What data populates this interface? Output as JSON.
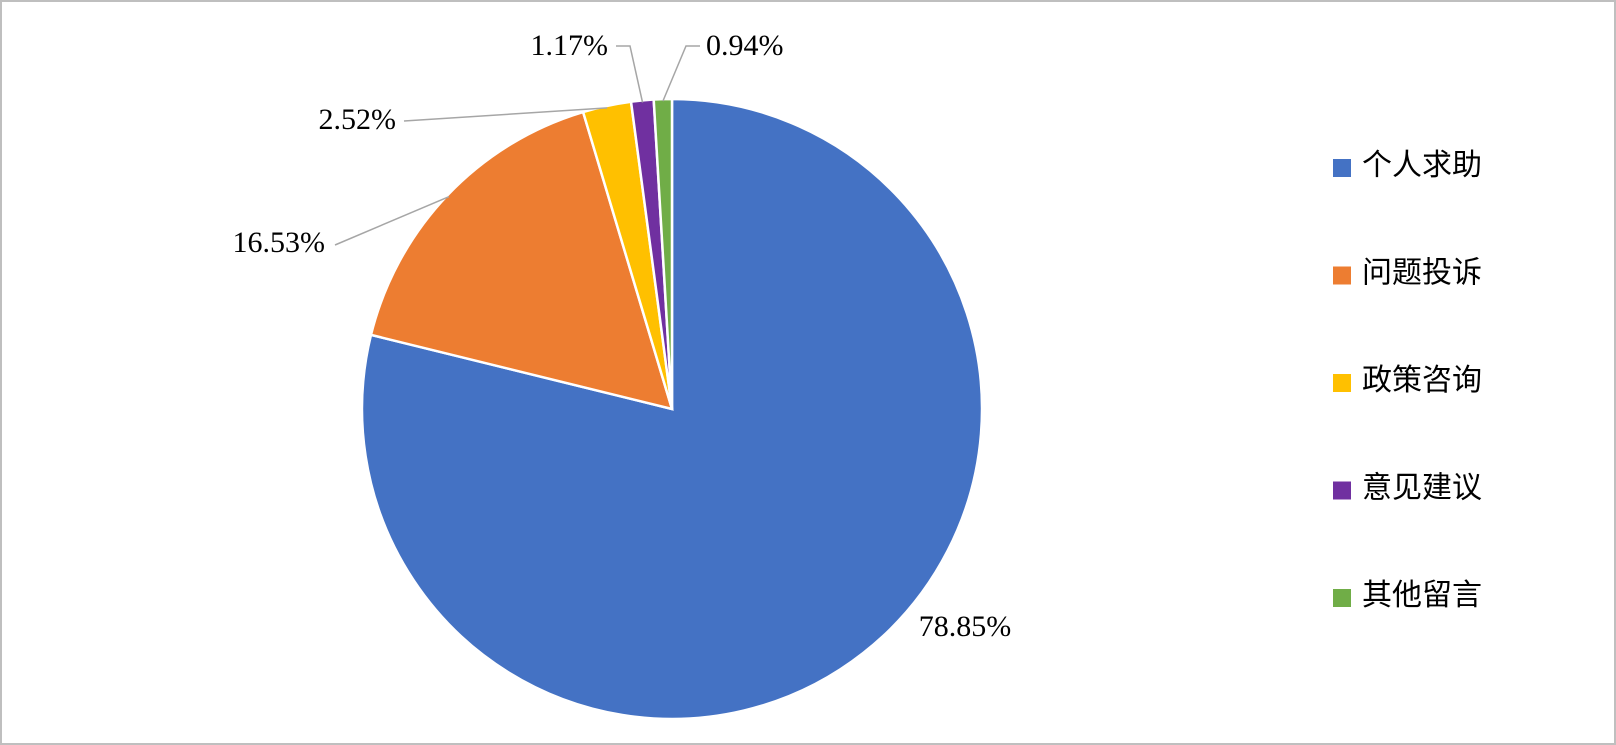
{
  "chart_data": {
    "type": "pie",
    "categories": [
      "个人求助",
      "问题投诉",
      "政策咨询",
      "意见建议",
      "其他留言"
    ],
    "values": [
      78.85,
      16.53,
      2.52,
      1.17,
      0.94
    ],
    "value_labels": [
      "78.85%",
      "16.53%",
      "2.52%",
      "1.17%",
      "0.94%"
    ],
    "colors": [
      "#4472c4",
      "#ed7d31",
      "#ffc000",
      "#7030a0",
      "#70ad47"
    ],
    "legend": "right"
  }
}
